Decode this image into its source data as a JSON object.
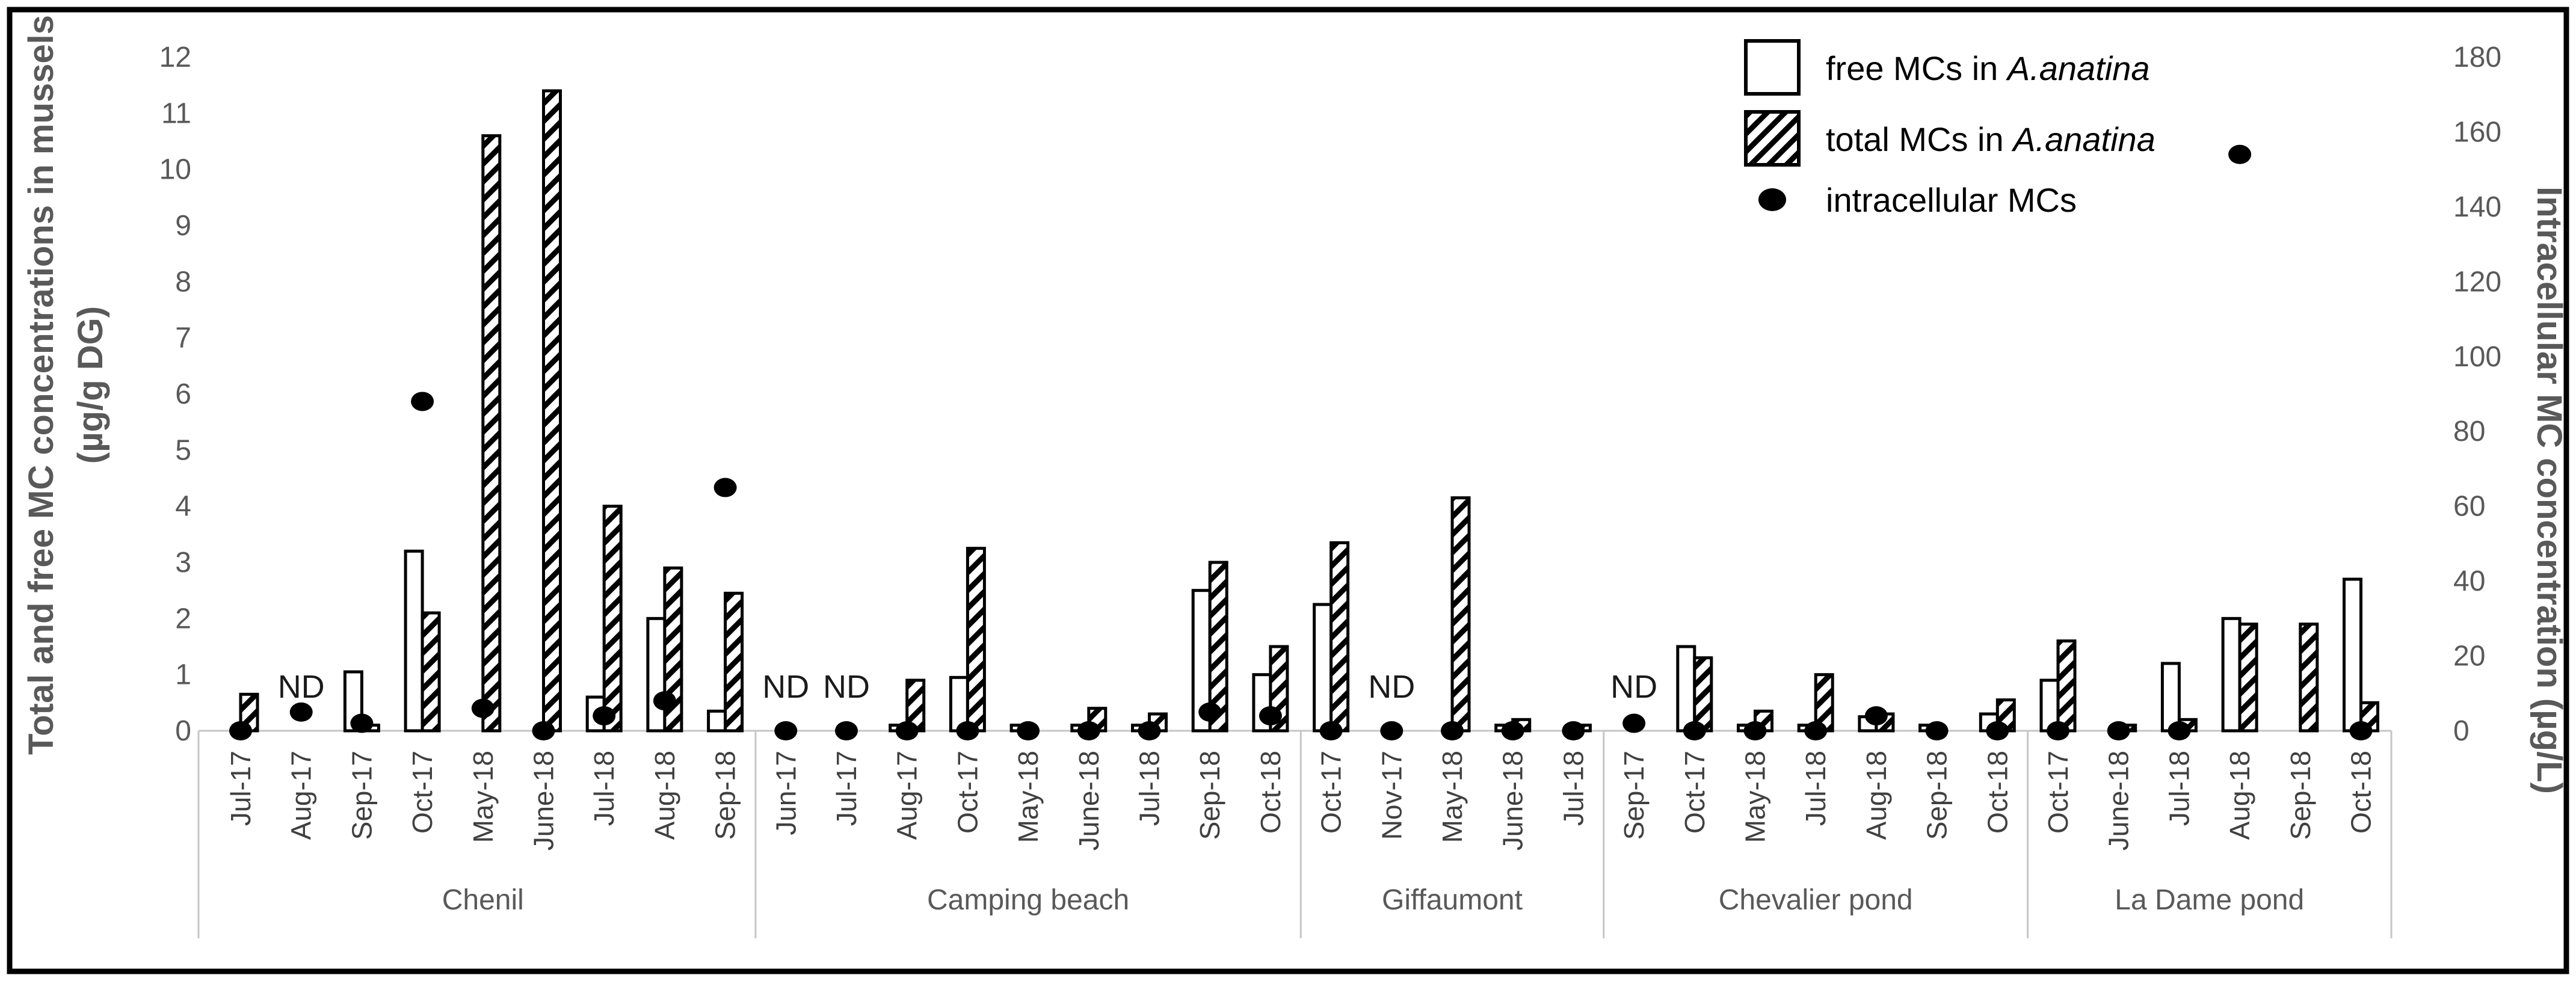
{
  "legend": {
    "items": [
      {
        "swatch": "open-bar-icon",
        "label": "free MCs in ",
        "label_italic": "A.anatina"
      },
      {
        "swatch": "hatched-bar-icon",
        "label": "total MCs in ",
        "label_italic": "A.anatina"
      },
      {
        "swatch": "dot-icon",
        "label": "intracellular MCs",
        "label_italic": ""
      }
    ]
  },
  "chart_data": {
    "type": "bar",
    "title": "",
    "nd_label": "ND",
    "left_axis": {
      "title_line1": "Total and free MC concentrations in mussels",
      "title_line2": "(µg/g DG)",
      "min": 0,
      "max": 12,
      "step": 1,
      "ticks": [
        0,
        1,
        2,
        3,
        4,
        5,
        6,
        7,
        8,
        9,
        10,
        11,
        12
      ]
    },
    "right_axis": {
      "title": "Intracellular MC concentration (µg/L)",
      "min": 0,
      "max": 180,
      "step": 20,
      "ticks": [
        0,
        20,
        40,
        60,
        80,
        100,
        120,
        140,
        160,
        180
      ]
    },
    "series_names": [
      "free MCs in A.anatina (µg/g DG)",
      "total MCs in A.anatina (µg/g DG)",
      "intracellular MCs (µg/L)"
    ],
    "legend_position": "top-right",
    "grid": false,
    "groups": [
      {
        "site": "Chenil",
        "points": [
          {
            "date": "Jul-17",
            "free": 0,
            "total": 0.65,
            "intracellular": 0,
            "nd": false
          },
          {
            "date": "Aug-17",
            "free": null,
            "total": null,
            "intracellular": 5,
            "nd": true
          },
          {
            "date": "Sep-17",
            "free": 1.05,
            "total": 0.1,
            "intracellular": 2,
            "nd": false
          },
          {
            "date": "Oct-17",
            "free": 3.2,
            "total": 2.1,
            "intracellular": 88,
            "nd": false
          },
          {
            "date": "May-18",
            "free": 0,
            "total": 10.6,
            "intracellular": 6,
            "nd": false
          },
          {
            "date": "June-18",
            "free": 0,
            "total": 11.4,
            "intracellular": 0,
            "nd": false
          },
          {
            "date": "Jul-18",
            "free": 0.6,
            "total": 4.0,
            "intracellular": 4,
            "nd": false
          },
          {
            "date": "Aug-18",
            "free": 2.0,
            "total": 2.9,
            "intracellular": 8,
            "nd": false
          },
          {
            "date": "Sep-18",
            "free": 0.35,
            "total": 2.45,
            "intracellular": 65,
            "nd": false
          }
        ]
      },
      {
        "site": "Camping beach",
        "points": [
          {
            "date": "Jun-17",
            "free": null,
            "total": null,
            "intracellular": 0,
            "nd": true
          },
          {
            "date": "Jul-17",
            "free": null,
            "total": null,
            "intracellular": 0,
            "nd": true
          },
          {
            "date": "Aug-17",
            "free": 0.1,
            "total": 0.9,
            "intracellular": 0,
            "nd": false
          },
          {
            "date": "Oct-17",
            "free": 0.95,
            "total": 3.25,
            "intracellular": 0,
            "nd": false
          },
          {
            "date": "May-18",
            "free": 0.1,
            "total": 0,
            "intracellular": 0,
            "nd": false
          },
          {
            "date": "June-18",
            "free": 0.1,
            "total": 0.4,
            "intracellular": 0,
            "nd": false
          },
          {
            "date": "Jul-18",
            "free": 0.1,
            "total": 0.3,
            "intracellular": 0,
            "nd": false
          },
          {
            "date": "Sep-18",
            "free": 2.5,
            "total": 3.0,
            "intracellular": 5,
            "nd": false
          },
          {
            "date": "Oct-18",
            "free": 1.0,
            "total": 1.5,
            "intracellular": 4,
            "nd": false
          }
        ]
      },
      {
        "site": "Giffaumont",
        "points": [
          {
            "date": "Oct-17",
            "free": 2.25,
            "total": 3.35,
            "intracellular": 0,
            "nd": false
          },
          {
            "date": "Nov-17",
            "free": null,
            "total": null,
            "intracellular": 0,
            "nd": true
          },
          {
            "date": "May-18",
            "free": 0,
            "total": 4.15,
            "intracellular": 0,
            "nd": false
          },
          {
            "date": "June-18",
            "free": 0.1,
            "total": 0.2,
            "intracellular": 0,
            "nd": false
          },
          {
            "date": "Jul-18",
            "free": 0,
            "total": 0.1,
            "intracellular": 0,
            "nd": false
          }
        ]
      },
      {
        "site": "Chevalier pond",
        "points": [
          {
            "date": "Sep-17",
            "free": null,
            "total": null,
            "intracellular": 2,
            "nd": true
          },
          {
            "date": "Oct-17",
            "free": 1.5,
            "total": 1.3,
            "intracellular": 0,
            "nd": false
          },
          {
            "date": "May-18",
            "free": 0.1,
            "total": 0.35,
            "intracellular": 0,
            "nd": false
          },
          {
            "date": "Jul-18",
            "free": 0.1,
            "total": 1.0,
            "intracellular": 0,
            "nd": false
          },
          {
            "date": "Aug-18",
            "free": 0.25,
            "total": 0.3,
            "intracellular": 4,
            "nd": false
          },
          {
            "date": "Sep-18",
            "free": 0.1,
            "total": 0,
            "intracellular": 0,
            "nd": false
          },
          {
            "date": "Oct-18",
            "free": 0.3,
            "total": 0.55,
            "intracellular": 0,
            "nd": false
          }
        ]
      },
      {
        "site": "La Dame pond",
        "points": [
          {
            "date": "Oct-17",
            "free": 0.9,
            "total": 1.6,
            "intracellular": 0,
            "nd": false
          },
          {
            "date": "June-18",
            "free": 0,
            "total": 0.1,
            "intracellular": 0,
            "nd": false
          },
          {
            "date": "Jul-18",
            "free": 1.2,
            "total": 0.2,
            "intracellular": 0,
            "nd": false
          },
          {
            "date": "Aug-18",
            "free": 2.0,
            "total": 1.9,
            "intracellular": 154,
            "nd": false
          },
          {
            "date": "Sep-18",
            "free": 0,
            "total": 1.9,
            "intracellular": null,
            "nd": false
          },
          {
            "date": "Oct-18",
            "free": 2.7,
            "total": 0.5,
            "intracellular": 0,
            "nd": false
          }
        ]
      }
    ],
    "colors": {
      "bar_outline": "#000000",
      "bar_fill": "#ffffff",
      "dot": "#000000",
      "axis_text": "#595959",
      "date_text": "#404040",
      "nd_text": "#1a1a1a",
      "frame_line": "#c6c6c6",
      "border": "#000000"
    }
  }
}
